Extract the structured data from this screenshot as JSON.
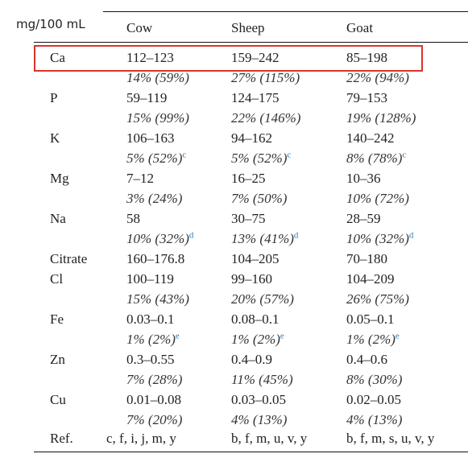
{
  "unit_label": "mg/100 mL",
  "columns": [
    "Cow",
    "Sheep",
    "Goat"
  ],
  "rows": [
    {
      "label": "Ca",
      "cells": [
        {
          "range": "112–123",
          "pct": "14% (59%)"
        },
        {
          "range": "159–242",
          "pct": "27% (115%)"
        },
        {
          "range": "85–198",
          "pct": "22% (94%)"
        }
      ]
    },
    {
      "label": "P",
      "cells": [
        {
          "range": "59–119",
          "pct": "15% (99%)"
        },
        {
          "range": "124–175",
          "pct": "22% (146%)"
        },
        {
          "range": "79–153",
          "pct": "19% (128%)"
        }
      ]
    },
    {
      "label": "K",
      "cells": [
        {
          "range": "106–163",
          "pct": "5% (52%)",
          "sup": "c"
        },
        {
          "range": "94–162",
          "pct": "5% (52%)",
          "sup": "c"
        },
        {
          "range": "140–242",
          "pct": "8% (78%)",
          "sup": "c"
        }
      ]
    },
    {
      "label": "Mg",
      "cells": [
        {
          "range": "7–12",
          "pct": "3% (24%)"
        },
        {
          "range": "16–25",
          "pct": "7% (50%)"
        },
        {
          "range": "10–36",
          "pct": "10% (72%)"
        }
      ]
    },
    {
      "label": "Na",
      "cells": [
        {
          "range": "58",
          "pct": "10% (32%)",
          "sup": "d"
        },
        {
          "range": "30–75",
          "pct": "13% (41%)",
          "sup": "d"
        },
        {
          "range": "28–59",
          "pct": "10% (32%)",
          "sup": "d"
        }
      ]
    },
    {
      "label": "Citrate",
      "cells": [
        {
          "range": "160–176.8"
        },
        {
          "range": "104–205"
        },
        {
          "range": "70–180"
        }
      ]
    },
    {
      "label": "Cl",
      "cells": [
        {
          "range": "100–119",
          "pct": "15% (43%)"
        },
        {
          "range": "99–160",
          "pct": "20% (57%)"
        },
        {
          "range": "104–209",
          "pct": "26% (75%)"
        }
      ]
    },
    {
      "label": "Fe",
      "cells": [
        {
          "range": "0.03–0.1",
          "pct": "1% (2%)",
          "sup": "e"
        },
        {
          "range": "0.08–0.1",
          "pct": "1% (2%)",
          "sup": "e"
        },
        {
          "range": "0.05–0.1",
          "pct": "1% (2%)",
          "sup": "e"
        }
      ]
    },
    {
      "label": "Zn",
      "cells": [
        {
          "range": "0.3–0.55",
          "pct": "7% (28%)"
        },
        {
          "range": "0.4–0.9",
          "pct": "11% (45%)"
        },
        {
          "range": "0.4–0.6",
          "pct": "8% (30%)"
        }
      ]
    },
    {
      "label": "Cu",
      "cells": [
        {
          "range": "0.01–0.08",
          "pct": "7% (20%)"
        },
        {
          "range": "0.03–0.05",
          "pct": "4% (13%)"
        },
        {
          "range": "0.02–0.05",
          "pct": "4% (13%)"
        }
      ]
    }
  ],
  "ref": {
    "label": "Ref.",
    "cells": [
      "c, f, i, j, m, y",
      "b, f, m, u, v, y",
      "b, f, m, s, u, v, y"
    ]
  }
}
